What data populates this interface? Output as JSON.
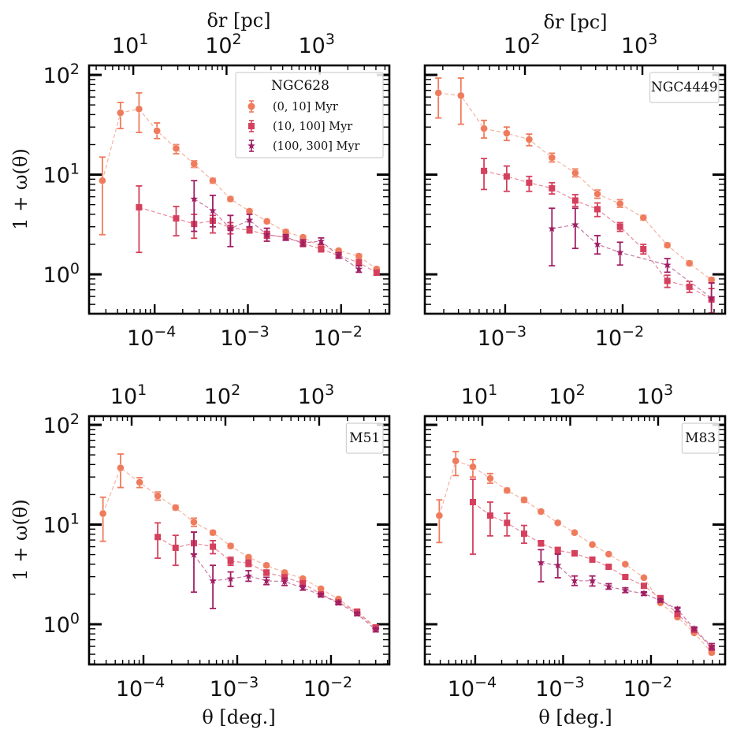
{
  "figure": {
    "ylabel": "1 + ω(θ)",
    "xlabel": "θ [deg.]",
    "top_xlabel": "δr [pc]"
  },
  "legend": {
    "entries": [
      {
        "label": "(0, 10] Myr",
        "marker": "circle",
        "color": "#EE7B5C"
      },
      {
        "label": "(10, 100] Myr",
        "marker": "square",
        "color": "#D5405D"
      },
      {
        "label": "(100, 300] Myr",
        "marker": "star",
        "color": "#A01F63"
      }
    ]
  },
  "chart_data": [
    {
      "type": "scatter",
      "title": "NGC628",
      "xlabel": "",
      "ylabel": "1 + ω(θ)",
      "top_xlabel": "δr [pc]",
      "xscale": "log",
      "yscale": "log",
      "xlim": [
        1.98e-05,
        0.0329
      ],
      "ylim": [
        0.403,
        124.5
      ],
      "xticks": [
        {
          "value": 0.0001,
          "label": "10",
          "exp": "−4"
        },
        {
          "value": 0.001,
          "label": "10",
          "exp": "−3"
        },
        {
          "value": 0.01,
          "label": "10",
          "exp": "−2"
        }
      ],
      "yticks": [
        {
          "value": 1,
          "label": "10",
          "exp": "0"
        },
        {
          "value": 10,
          "label": "10",
          "exp": "1"
        },
        {
          "value": 100,
          "label": "10",
          "exp": "2"
        }
      ],
      "top_axis": {
        "pc_per_deg": 169400,
        "ticks": [
          {
            "value": 10,
            "label": "10",
            "exp": "1"
          },
          {
            "value": 100,
            "label": "10",
            "exp": "2"
          },
          {
            "value": 1000,
            "label": "10",
            "exp": "3"
          }
        ]
      },
      "legend_placement": "top-right",
      "legend_shows_entries": true,
      "series": [
        {
          "name": "(0, 10] Myr",
          "x": [
            2.75e-05,
            4.3e-05,
            6.8e-05,
            0.000106,
            0.00017,
            0.000265,
            0.00042,
            0.00065,
            0.00104,
            0.0016,
            0.00255,
            0.0039,
            0.0061,
            0.0094,
            0.0155,
            0.024
          ],
          "y": [
            8.7,
            41.7,
            45.5,
            27.5,
            18.3,
            12.8,
            8.7,
            5.7,
            4.3,
            3.4,
            2.67,
            2.35,
            1.9,
            1.73,
            1.52,
            1.13
          ],
          "ylo": [
            2.5,
            29,
            26.5,
            23,
            16.2,
            11.8,
            8.2,
            5.4,
            4.1,
            3.25,
            2.55,
            2.25,
            1.82,
            1.66,
            1.45,
            1.08
          ],
          "yhi": [
            15.0,
            53,
            66,
            33,
            20,
            13.8,
            9.2,
            6.0,
            4.5,
            3.55,
            2.8,
            2.45,
            1.98,
            1.8,
            1.6,
            1.18
          ]
        },
        {
          "name": "(10, 100] Myr",
          "x": [
            6.8e-05,
            0.00017,
            0.000265,
            0.00042,
            0.00065,
            0.00104,
            0.0016,
            0.00255,
            0.0039,
            0.0061,
            0.0094,
            0.0155,
            0.024
          ],
          "y": [
            4.7,
            3.64,
            3.2,
            3.45,
            2.93,
            2.77,
            2.5,
            2.35,
            2.04,
            1.79,
            1.55,
            1.31,
            1.04
          ],
          "ylo": [
            1.66,
            2.44,
            2.3,
            2.6,
            2.55,
            2.6,
            2.3,
            2.2,
            1.9,
            1.68,
            1.46,
            1.22,
            0.98
          ],
          "yhi": [
            7.7,
            4.8,
            4.0,
            3.9,
            3.3,
            2.95,
            2.7,
            2.5,
            2.18,
            1.9,
            1.64,
            1.4,
            1.1
          ]
        },
        {
          "name": "(100, 300] Myr",
          "x": [
            0.000265,
            0.00042,
            0.00065,
            0.00104,
            0.0016,
            0.00255,
            0.0039,
            0.0061,
            0.0094,
            0.0155
          ],
          "y": [
            5.7,
            4.36,
            2.87,
            3.5,
            2.5,
            2.35,
            2.07,
            2.15,
            1.55,
            1.13
          ],
          "ylo": [
            2.7,
            3.0,
            1.9,
            3.0,
            2.15,
            2.2,
            1.92,
            2.0,
            1.45,
            1.05
          ],
          "yhi": [
            8.7,
            6.2,
            3.9,
            4.0,
            2.9,
            2.5,
            2.22,
            2.32,
            1.65,
            1.22
          ]
        }
      ]
    },
    {
      "type": "scatter",
      "title": "NGC4449",
      "xlabel": "",
      "ylabel": "",
      "top_xlabel": "δr [pc]",
      "xscale": "log",
      "yscale": "log",
      "xlim": [
        0.000207,
        0.0745
      ],
      "ylim": [
        0.403,
        124.5
      ],
      "xticks": [
        {
          "value": 0.001,
          "label": "10",
          "exp": "−3"
        },
        {
          "value": 0.01,
          "label": "10",
          "exp": "−2"
        }
      ],
      "yticks": [
        {
          "value": 1,
          "label": "",
          "exp": ""
        },
        {
          "value": 10,
          "label": "",
          "exp": ""
        },
        {
          "value": 100,
          "label": "",
          "exp": ""
        }
      ],
      "top_axis": {
        "pc_per_deg": 67900,
        "ticks": [
          {
            "value": 100,
            "label": "10",
            "exp": "2"
          },
          {
            "value": 1000,
            "label": "10",
            "exp": "3"
          }
        ]
      },
      "legend_placement": "top-right",
      "legend_shows_entries": false,
      "series": [
        {
          "name": "(0, 10] Myr",
          "x": [
            0.00027,
            0.00042,
            0.00066,
            0.00103,
            0.0016,
            0.0025,
            0.00395,
            0.0061,
            0.0095,
            0.015,
            0.024,
            0.037,
            0.057
          ],
          "y": [
            66,
            62,
            29,
            26,
            22.5,
            14.8,
            10.4,
            6.4,
            5.1,
            3.7,
            1.96,
            1.29,
            0.88
          ],
          "ylo": [
            37,
            32,
            23.3,
            22,
            19.5,
            13.4,
            9.5,
            5.8,
            4.7,
            3.5,
            1.86,
            1.22,
            0.83
          ],
          "yhi": [
            93,
            93,
            35,
            30,
            25.5,
            16.4,
            11.4,
            7.0,
            5.6,
            3.9,
            2.06,
            1.36,
            0.93
          ]
        },
        {
          "name": "(10, 100] Myr",
          "x": [
            0.00066,
            0.00103,
            0.0016,
            0.0025,
            0.00395,
            0.0061,
            0.0095,
            0.015,
            0.024,
            0.037,
            0.057
          ],
          "y": [
            10.9,
            9.6,
            8.3,
            7.3,
            5.5,
            4.5,
            3.0,
            1.79,
            0.86,
            0.75,
            0.56
          ],
          "ylo": [
            7.1,
            6.8,
            6.8,
            6.4,
            4.8,
            3.8,
            2.7,
            1.6,
            0.74,
            0.66,
            0.41
          ],
          "yhi": [
            14.5,
            12.2,
            9.6,
            8.3,
            6.3,
            5.2,
            3.3,
            2.0,
            0.98,
            0.85,
            0.72
          ]
        },
        {
          "name": "(100, 300] Myr",
          "x": [
            0.0025,
            0.00395,
            0.0061,
            0.0095,
            0.024,
            0.057
          ],
          "y": [
            2.87,
            3.15,
            2.0,
            1.66,
            1.24,
            0.58
          ],
          "ylo": [
            1.22,
            1.82,
            1.6,
            1.24,
            1.05,
            0.38
          ],
          "yhi": [
            4.6,
            4.6,
            2.45,
            2.1,
            1.44,
            0.82
          ]
        }
      ]
    },
    {
      "type": "scatter",
      "title": "M51",
      "xlabel": "θ [deg.]",
      "ylabel": "1 + ω(θ)",
      "top_xlabel": "",
      "xscale": "log",
      "yscale": "log",
      "xlim": [
        2.63e-05,
        0.0419
      ],
      "ylim": [
        0.395,
        122.2
      ],
      "xticks": [
        {
          "value": 0.0001,
          "label": "10",
          "exp": "−4"
        },
        {
          "value": 0.001,
          "label": "10",
          "exp": "−3"
        },
        {
          "value": 0.01,
          "label": "10",
          "exp": "−2"
        }
      ],
      "yticks": [
        {
          "value": 1,
          "label": "10",
          "exp": "0"
        },
        {
          "value": 10,
          "label": "10",
          "exp": "1"
        },
        {
          "value": 100,
          "label": "10",
          "exp": "2"
        }
      ],
      "top_axis": {
        "pc_per_deg": 133700,
        "ticks": [
          {
            "value": 10,
            "label": "10",
            "exp": "1"
          },
          {
            "value": 100,
            "label": "10",
            "exp": "2"
          },
          {
            "value": 1000,
            "label": "10",
            "exp": "3"
          }
        ]
      },
      "legend_placement": "top-right",
      "legend_shows_entries": false,
      "series": [
        {
          "name": "(0, 10] Myr",
          "x": [
            3.7e-05,
            5.7e-05,
            9.1e-05,
            0.000142,
            0.00022,
            0.000345,
            0.00055,
            0.00085,
            0.00132,
            0.00205,
            0.0032,
            0.005,
            0.0078,
            0.012,
            0.019,
            0.03
          ],
          "y": [
            12.9,
            37,
            26.5,
            19.4,
            14.8,
            10.6,
            8.3,
            6.1,
            4.7,
            3.9,
            3.3,
            2.87,
            2.27,
            1.79,
            1.31,
            0.91
          ],
          "ylo": [
            6.8,
            23.5,
            23.5,
            17.6,
            14.0,
            9.6,
            7.9,
            5.8,
            4.5,
            3.75,
            3.18,
            2.77,
            2.2,
            1.73,
            1.26,
            0.87
          ],
          "yhi": [
            18.8,
            51,
            29.5,
            21.2,
            15.6,
            11.6,
            8.7,
            6.4,
            4.9,
            4.05,
            3.42,
            2.97,
            2.34,
            1.85,
            1.36,
            0.95
          ]
        },
        {
          "name": "(10, 100] Myr",
          "x": [
            0.000142,
            0.00022,
            0.000345,
            0.00055,
            0.00085,
            0.00132,
            0.00205,
            0.0032,
            0.005,
            0.0078,
            0.012,
            0.019,
            0.03
          ],
          "y": [
            7.5,
            5.85,
            6.5,
            6.0,
            4.3,
            4.1,
            3.3,
            2.97,
            2.58,
            2.0,
            1.66,
            1.34,
            0.93
          ],
          "ylo": [
            4.6,
            3.9,
            5.05,
            5.1,
            3.9,
            3.8,
            3.1,
            2.82,
            2.46,
            1.92,
            1.6,
            1.29,
            0.89
          ],
          "yhi": [
            10.4,
            7.8,
            8.4,
            6.9,
            4.7,
            4.4,
            3.5,
            3.12,
            2.7,
            2.08,
            1.72,
            1.39,
            0.97
          ]
        },
        {
          "name": "(100, 300] Myr",
          "x": [
            0.000345,
            0.00055,
            0.00085,
            0.00132,
            0.00205,
            0.0032,
            0.005,
            0.0078,
            0.012,
            0.019,
            0.03
          ],
          "y": [
            5.0,
            2.73,
            2.86,
            3.05,
            2.73,
            2.68,
            2.32,
            1.96,
            1.64,
            1.27,
            0.88
          ],
          "ylo": [
            2.1,
            1.44,
            2.4,
            2.7,
            2.5,
            2.45,
            2.2,
            1.88,
            1.58,
            1.22,
            0.84
          ],
          "yhi": [
            8.4,
            3.9,
            3.35,
            3.45,
            2.96,
            2.9,
            2.44,
            2.04,
            1.7,
            1.32,
            0.92
          ]
        }
      ]
    },
    {
      "type": "scatter",
      "title": "M83",
      "xlabel": "θ [deg.]",
      "ylabel": "",
      "top_xlabel": "",
      "xscale": "log",
      "yscale": "log",
      "xlim": [
        2.67e-05,
        0.0697
      ],
      "ylim": [
        0.395,
        122.2
      ],
      "xticks": [
        {
          "value": 0.0001,
          "label": "10",
          "exp": "−4"
        },
        {
          "value": 0.001,
          "label": "10",
          "exp": "−3"
        },
        {
          "value": 0.01,
          "label": "10",
          "exp": "−2"
        }
      ],
      "yticks": [
        {
          "value": 1,
          "label": "",
          "exp": ""
        },
        {
          "value": 10,
          "label": "",
          "exp": ""
        },
        {
          "value": 100,
          "label": "",
          "exp": ""
        }
      ],
      "top_axis": {
        "pc_per_deg": 83000,
        "ticks": [
          {
            "value": 10,
            "label": "10",
            "exp": "1"
          },
          {
            "value": 100,
            "label": "10",
            "exp": "2"
          },
          {
            "value": 1000,
            "label": "10",
            "exp": "3"
          }
        ]
      },
      "legend_placement": "top-right",
      "legend_shows_entries": false,
      "series": [
        {
          "name": "(0, 10] Myr",
          "x": [
            3.9e-05,
            6e-05,
            9.4e-05,
            0.000148,
            0.00023,
            0.00036,
            0.00056,
            0.00087,
            0.00135,
            0.00215,
            0.0033,
            0.0051,
            0.0083,
            0.0128,
            0.02,
            0.031,
            0.049
          ],
          "y": [
            12.3,
            43.5,
            38,
            29,
            22,
            17.7,
            13.5,
            10.4,
            8.3,
            6.3,
            5.05,
            4.0,
            2.93,
            1.64,
            1.18,
            0.82,
            0.52
          ],
          "ylo": [
            6.6,
            31,
            30,
            26,
            20.8,
            16.7,
            12.9,
            10.0,
            8.0,
            6.1,
            4.9,
            3.9,
            2.86,
            1.6,
            1.15,
            0.8,
            0.5
          ],
          "yhi": [
            17.7,
            54,
            45,
            32.5,
            23.2,
            18.7,
            14.1,
            10.8,
            8.6,
            6.5,
            5.2,
            4.1,
            3.0,
            1.68,
            1.22,
            0.85,
            0.55
          ]
        },
        {
          "name": "(10, 100] Myr",
          "x": [
            9.4e-05,
            0.000148,
            0.00023,
            0.00036,
            0.00056,
            0.00087,
            0.00135,
            0.00215,
            0.0033,
            0.0051,
            0.0083,
            0.0128,
            0.02,
            0.031,
            0.049
          ],
          "y": [
            16.8,
            12.3,
            10.4,
            8.1,
            6.5,
            5.5,
            5.15,
            4.45,
            3.77,
            2.98,
            2.43,
            1.83,
            1.27,
            0.88,
            0.58
          ],
          "ylo": [
            5.05,
            7.7,
            7.7,
            6.5,
            6.1,
            5.1,
            4.85,
            4.25,
            3.62,
            2.88,
            2.33,
            1.76,
            1.22,
            0.85,
            0.55
          ],
          "yhi": [
            28.5,
            16.8,
            13.0,
            9.8,
            6.9,
            5.9,
            5.45,
            4.65,
            3.92,
            3.08,
            2.53,
            1.9,
            1.32,
            0.91,
            0.61
          ]
        },
        {
          "name": "(100, 300] Myr",
          "x": [
            0.00056,
            0.00087,
            0.00135,
            0.00215,
            0.0033,
            0.0051,
            0.0083,
            0.0128,
            0.02,
            0.031,
            0.049
          ],
          "y": [
            4.15,
            3.9,
            2.73,
            2.73,
            2.39,
            2.19,
            2.03,
            1.73,
            1.41,
            0.9,
            0.6
          ],
          "ylo": [
            2.67,
            2.93,
            2.45,
            2.42,
            2.25,
            2.08,
            1.95,
            1.67,
            1.35,
            0.86,
            0.56
          ],
          "yhi": [
            5.6,
            5.05,
            3.05,
            3.05,
            2.55,
            2.32,
            2.12,
            1.8,
            1.48,
            0.94,
            0.64
          ]
        }
      ]
    }
  ]
}
